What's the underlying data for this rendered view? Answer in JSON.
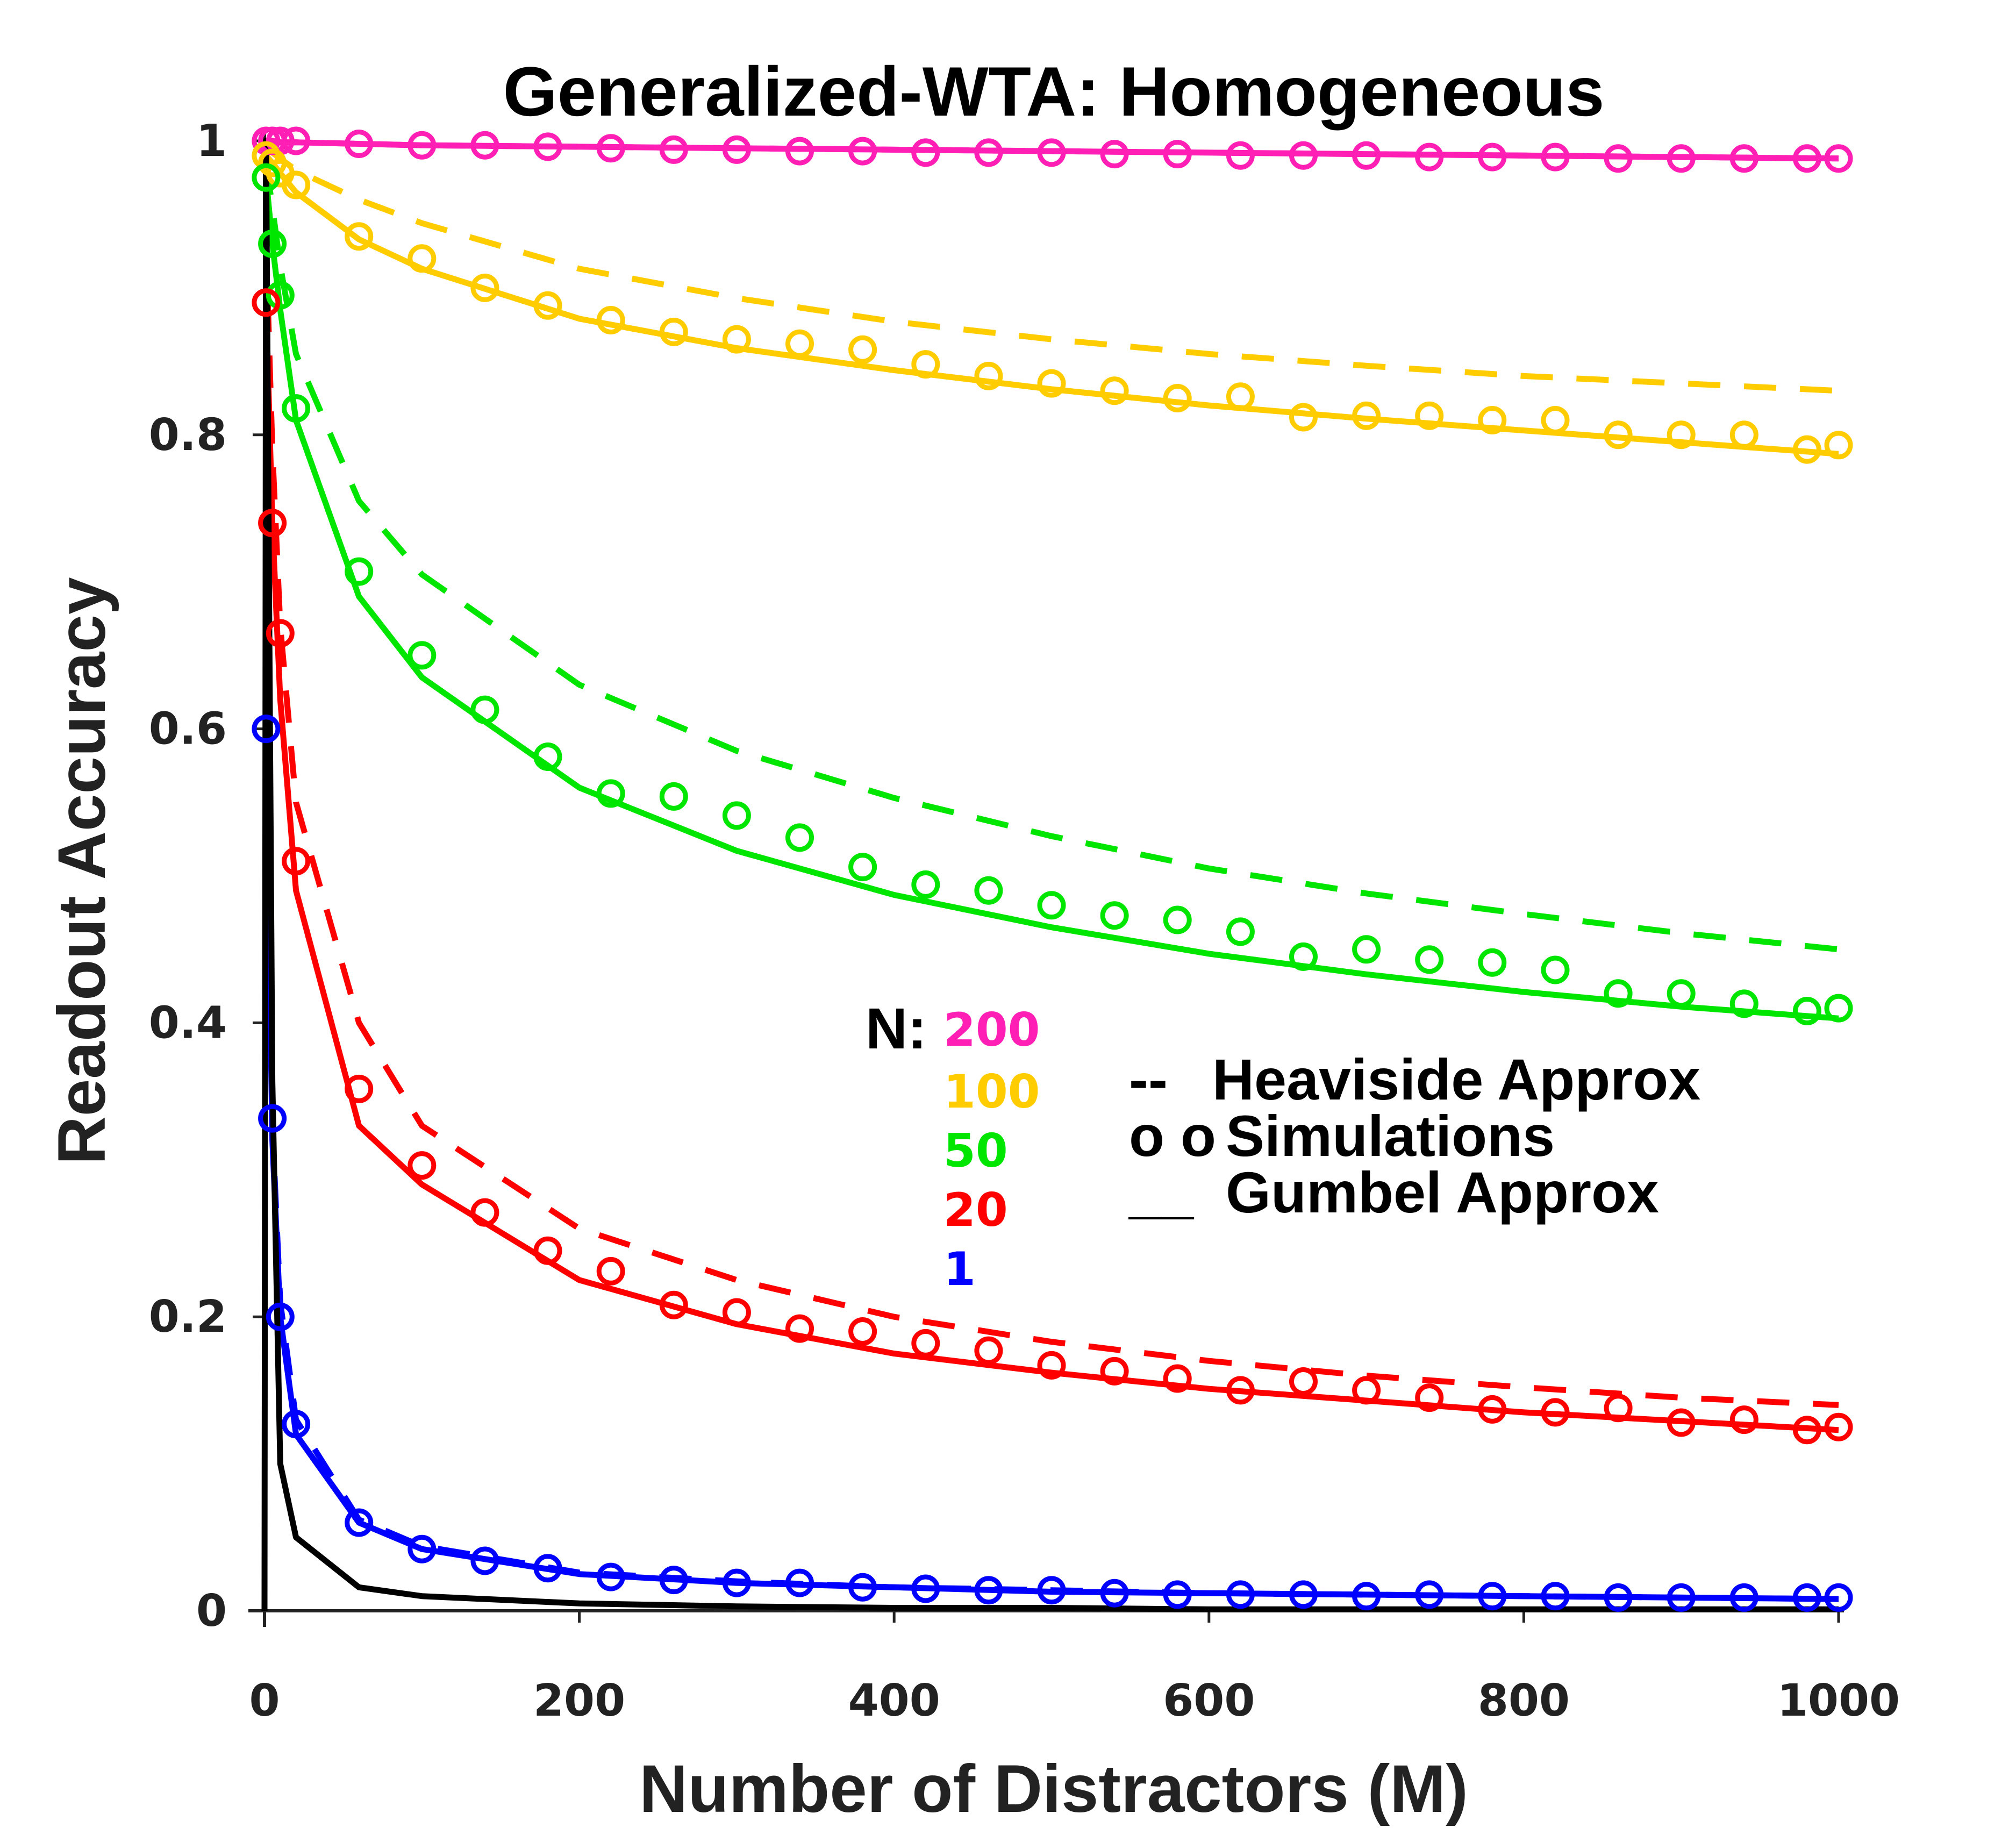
{
  "chart_data": {
    "type": "line",
    "title": "Generalized-WTA: Homogeneous",
    "xlabel": "Number of Distractors (M)",
    "ylabel": "Readout Accuracy",
    "xlim": [
      0,
      1000
    ],
    "ylim": [
      0,
      1
    ],
    "xticks": [
      "0",
      "200",
      "400",
      "600",
      "800",
      "1000"
    ],
    "yticks": [
      "0",
      "0.2",
      "0.4",
      "0.6",
      "0.8",
      "1"
    ],
    "grid": false,
    "legend": {
      "n_prefix": "N:",
      "n_values": [
        "200",
        "100",
        "50",
        "20",
        "1"
      ],
      "styles": [
        {
          "marker": "--",
          "label": "Heaviside Approx"
        },
        {
          "marker": "o o",
          "label": "Simulations"
        },
        {
          "marker": "__",
          "label": "Gumbel Approx"
        }
      ]
    },
    "series": [
      {
        "name": "200",
        "color": "#ff1fb4",
        "gumbel": {
          "x": [
            1,
            5,
            10,
            20,
            60,
            100,
            200,
            300,
            400,
            500,
            600,
            700,
            800,
            900,
            1000
          ],
          "y": [
            1.0,
            1.0,
            0.999,
            0.999,
            0.998,
            0.997,
            0.996,
            0.995,
            0.994,
            0.993,
            0.992,
            0.991,
            0.99,
            0.989,
            0.988
          ]
        },
        "heaviside": {
          "x": [
            1,
            5,
            10,
            20,
            60,
            100,
            200,
            300,
            400,
            500,
            600,
            700,
            800,
            900,
            1000
          ],
          "y": [
            1.0,
            1.0,
            0.999,
            0.999,
            0.998,
            0.997,
            0.996,
            0.995,
            0.994,
            0.993,
            0.992,
            0.991,
            0.99,
            0.989,
            0.988
          ]
        },
        "sim": {
          "x": [
            1,
            5,
            10,
            20,
            60,
            100,
            140,
            180,
            220,
            260,
            300,
            340,
            380,
            420,
            460,
            500,
            540,
            580,
            620,
            660,
            700,
            740,
            780,
            820,
            860,
            900,
            940,
            980,
            1000
          ],
          "y": [
            1.0,
            1.0,
            1.0,
            1.0,
            0.998,
            0.997,
            0.997,
            0.996,
            0.995,
            0.994,
            0.994,
            0.993,
            0.993,
            0.992,
            0.992,
            0.992,
            0.991,
            0.991,
            0.99,
            0.99,
            0.99,
            0.989,
            0.989,
            0.989,
            0.988,
            0.988,
            0.988,
            0.988,
            0.988
          ]
        }
      },
      {
        "name": "100",
        "color": "#ffcc00",
        "gumbel": {
          "x": [
            1,
            5,
            10,
            20,
            60,
            100,
            200,
            300,
            400,
            500,
            600,
            700,
            800,
            900,
            1000
          ],
          "y": [
            0.99,
            0.985,
            0.978,
            0.965,
            0.933,
            0.913,
            0.879,
            0.859,
            0.844,
            0.831,
            0.82,
            0.811,
            0.803,
            0.795,
            0.787
          ]
        },
        "heaviside": {
          "x": [
            1,
            5,
            10,
            20,
            60,
            100,
            200,
            300,
            400,
            500,
            600,
            700,
            800,
            900,
            1000
          ],
          "y": [
            0.995,
            0.992,
            0.988,
            0.98,
            0.96,
            0.944,
            0.913,
            0.893,
            0.877,
            0.865,
            0.855,
            0.847,
            0.84,
            0.835,
            0.83
          ]
        },
        "sim": {
          "x": [
            1,
            5,
            10,
            20,
            60,
            100,
            140,
            180,
            220,
            260,
            300,
            340,
            380,
            420,
            460,
            500,
            540,
            580,
            620,
            660,
            700,
            740,
            780,
            820,
            860,
            900,
            940,
            980,
            1000
          ],
          "y": [
            0.99,
            0.985,
            0.978,
            0.97,
            0.935,
            0.92,
            0.9,
            0.888,
            0.878,
            0.87,
            0.865,
            0.862,
            0.858,
            0.848,
            0.84,
            0.835,
            0.83,
            0.825,
            0.826,
            0.812,
            0.813,
            0.813,
            0.81,
            0.81,
            0.8,
            0.8,
            0.8,
            0.79,
            0.793
          ]
        }
      },
      {
        "name": "50",
        "color": "#00e600",
        "gumbel": {
          "x": [
            1,
            5,
            10,
            20,
            60,
            100,
            200,
            300,
            400,
            500,
            600,
            700,
            800,
            900,
            1000
          ],
          "y": [
            0.975,
            0.93,
            0.885,
            0.81,
            0.69,
            0.635,
            0.56,
            0.517,
            0.487,
            0.465,
            0.447,
            0.433,
            0.421,
            0.411,
            0.403
          ]
        },
        "heaviside": {
          "x": [
            1,
            5,
            10,
            20,
            60,
            100,
            200,
            300,
            400,
            500,
            600,
            700,
            800,
            900,
            1000
          ],
          "y": [
            0.985,
            0.955,
            0.915,
            0.855,
            0.755,
            0.705,
            0.63,
            0.585,
            0.553,
            0.527,
            0.505,
            0.488,
            0.474,
            0.461,
            0.45
          ]
        },
        "sim": {
          "x": [
            1,
            5,
            10,
            20,
            60,
            100,
            140,
            180,
            220,
            260,
            300,
            340,
            380,
            420,
            460,
            500,
            540,
            580,
            620,
            660,
            700,
            740,
            780,
            820,
            860,
            900,
            940,
            980,
            1000
          ],
          "y": [
            0.975,
            0.93,
            0.895,
            0.818,
            0.707,
            0.65,
            0.613,
            0.581,
            0.556,
            0.554,
            0.541,
            0.526,
            0.506,
            0.494,
            0.49,
            0.48,
            0.473,
            0.47,
            0.462,
            0.445,
            0.45,
            0.443,
            0.441,
            0.436,
            0.42,
            0.42,
            0.413,
            0.408,
            0.41
          ]
        }
      },
      {
        "name": "20",
        "color": "#ff0000",
        "gumbel": {
          "x": [
            1,
            5,
            10,
            20,
            60,
            100,
            200,
            300,
            400,
            500,
            600,
            700,
            800,
            900,
            1000
          ],
          "y": [
            0.89,
            0.74,
            0.62,
            0.49,
            0.33,
            0.29,
            0.225,
            0.195,
            0.175,
            0.162,
            0.151,
            0.143,
            0.135,
            0.129,
            0.123
          ]
        },
        "heaviside": {
          "x": [
            1,
            5,
            10,
            20,
            60,
            100,
            200,
            300,
            400,
            500,
            600,
            700,
            800,
            900,
            1000
          ],
          "y": [
            0.93,
            0.79,
            0.67,
            0.55,
            0.4,
            0.33,
            0.26,
            0.225,
            0.2,
            0.183,
            0.17,
            0.16,
            0.152,
            0.145,
            0.14
          ]
        },
        "sim": {
          "x": [
            1,
            5,
            10,
            20,
            60,
            100,
            140,
            180,
            220,
            260,
            300,
            340,
            380,
            420,
            460,
            500,
            540,
            580,
            620,
            660,
            700,
            740,
            780,
            820,
            860,
            900,
            940,
            980,
            1000
          ],
          "y": [
            0.89,
            0.74,
            0.665,
            0.51,
            0.355,
            0.303,
            0.271,
            0.245,
            0.231,
            0.208,
            0.203,
            0.192,
            0.19,
            0.182,
            0.177,
            0.167,
            0.163,
            0.158,
            0.15,
            0.156,
            0.15,
            0.145,
            0.137,
            0.135,
            0.138,
            0.128,
            0.13,
            0.123,
            0.125
          ]
        }
      },
      {
        "name": "1",
        "color": "#0000ff",
        "gumbel": {
          "x": [
            1,
            5,
            10,
            20,
            60,
            100,
            200,
            300,
            400,
            500,
            600,
            700,
            800,
            900,
            1000
          ],
          "y": [
            0.6,
            0.32,
            0.2,
            0.12,
            0.06,
            0.042,
            0.025,
            0.019,
            0.016,
            0.013,
            0.012,
            0.011,
            0.01,
            0.009,
            0.008
          ]
        },
        "heaviside": {
          "x": [
            1,
            5,
            10,
            20,
            60,
            100,
            200,
            300,
            400,
            500,
            600,
            700,
            800,
            900,
            1000
          ],
          "y": [
            0.6,
            0.33,
            0.21,
            0.13,
            0.062,
            0.044,
            0.026,
            0.02,
            0.016,
            0.014,
            0.012,
            0.011,
            0.01,
            0.009,
            0.008
          ]
        },
        "sim": {
          "x": [
            1,
            5,
            10,
            20,
            60,
            100,
            140,
            180,
            220,
            260,
            300,
            340,
            380,
            420,
            460,
            500,
            540,
            580,
            620,
            660,
            700,
            740,
            780,
            820,
            860,
            900,
            940,
            980,
            1000
          ],
          "y": [
            0.6,
            0.335,
            0.2,
            0.127,
            0.06,
            0.042,
            0.034,
            0.029,
            0.023,
            0.021,
            0.019,
            0.019,
            0.016,
            0.015,
            0.014,
            0.014,
            0.012,
            0.011,
            0.011,
            0.011,
            0.01,
            0.011,
            0.01,
            0.01,
            0.009,
            0.009,
            0.009,
            0.009,
            0.009
          ]
        }
      },
      {
        "name": "",
        "color": "#000000",
        "gumbel": {
          "x": [
            0,
            1,
            5,
            10,
            20,
            60,
            100,
            200,
            300,
            400,
            500,
            600,
            700,
            800,
            900,
            1000
          ],
          "y": [
            0.0,
            1.0,
            0.36,
            0.1,
            0.05,
            0.016,
            0.01,
            0.005,
            0.003,
            0.002,
            0.002,
            0.001,
            0.001,
            0.001,
            0.001,
            0.001
          ]
        }
      }
    ]
  }
}
